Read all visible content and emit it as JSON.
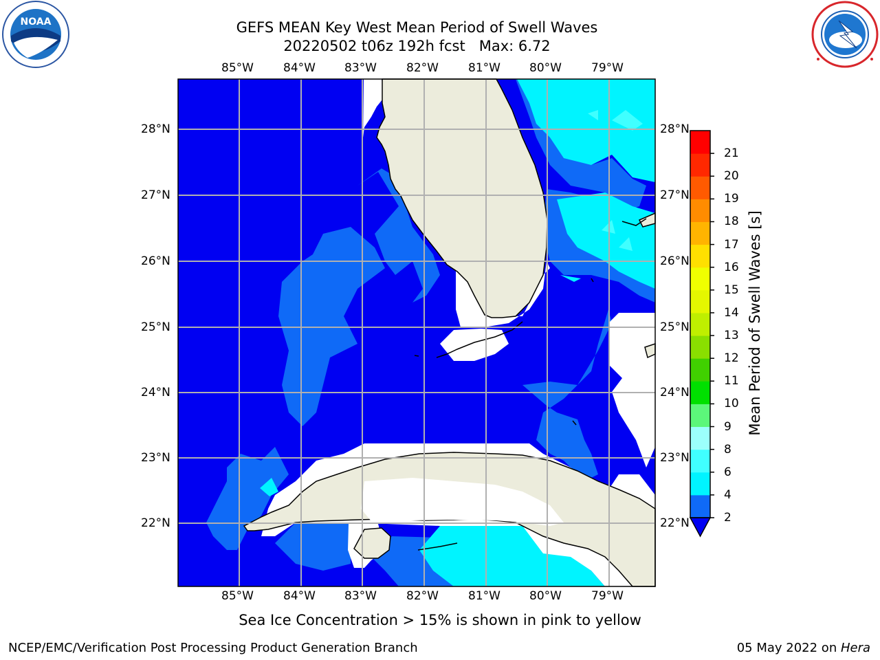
{
  "header": {
    "title_line1": "GEFS MEAN Key West Mean Period of Swell Waves",
    "title_line2": "20220502 t06z 192h fcst   Max: 6.72"
  },
  "logos": {
    "noaa_text": "NOAA",
    "noaa_ring_text": "NATIONAL OCEANIC AND ATMOSPHERIC ADMINISTRATION · U.S. DEPARTMENT OF COMMERCE",
    "nws_ring_text": "NATIONAL WEATHER SERVICE"
  },
  "map": {
    "lon_labels": [
      "85°W",
      "84°W",
      "83°W",
      "82°W",
      "81°W",
      "80°W",
      "79°W"
    ],
    "lat_labels": [
      "28°N",
      "27°N",
      "26°N",
      "25°N",
      "24°N",
      "23°N",
      "22°N"
    ]
  },
  "colorbar": {
    "label": "Mean Period of Swell Waves [s]",
    "ticks": [
      "2",
      "4",
      "6",
      "8",
      "9",
      "10",
      "11",
      "12",
      "13",
      "14",
      "15",
      "16",
      "17",
      "18",
      "19",
      "20",
      "21"
    ],
    "colors": [
      "#0f6af7",
      "#00f4ff",
      "#40ffff",
      "#9cfffc",
      "#5cf77a",
      "#00e000",
      "#40d000",
      "#8adf00",
      "#bfef00",
      "#e4f700",
      "#f0ff00",
      "#ffe000",
      "#ffb400",
      "#ff8c00",
      "#ff5a00",
      "#ff2800",
      "#ff0000"
    ],
    "under_color": "#0000f2"
  },
  "note": "Sea Ice Concentration > 15% is shown in pink to yellow",
  "footer": {
    "left": "NCEP/EMC/Verification Post Processing Product Generation Branch",
    "right_date": "05 May 2022 on ",
    "right_host": "Hera"
  }
}
